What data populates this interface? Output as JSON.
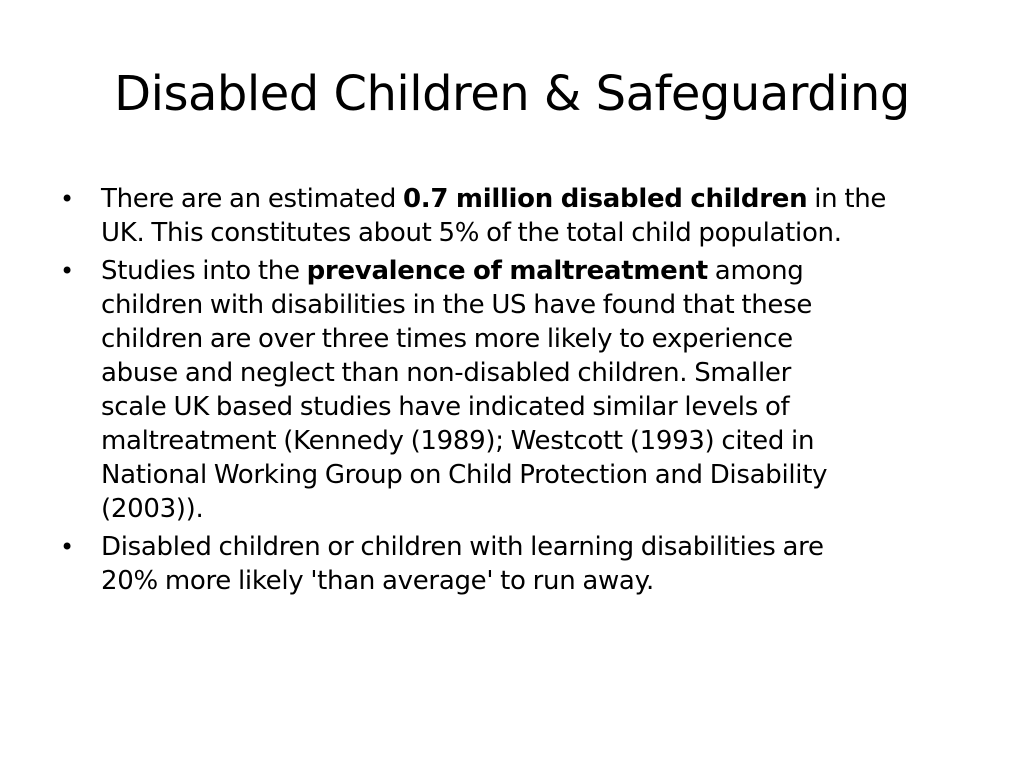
{
  "slide": {
    "title": "Disabled Children & Safeguarding",
    "bullet_glyph": "•",
    "bullets": [
      {
        "lines": [
          {
            "pre": "There are an estimated ",
            "bold": "0.7 million disabled children",
            "post": " in the"
          },
          {
            "text": "UK. This constitutes about 5% of the total child population."
          }
        ]
      },
      {
        "lines": [
          {
            "pre": "Studies into the ",
            "bold": "prevalence of maltreatment",
            "post": " among"
          },
          {
            "text": "children with disabilities in the US have found that these"
          },
          {
            "text": "children are over three times more likely to experience"
          },
          {
            "text": "abuse and neglect than non-disabled children. Smaller"
          },
          {
            "text": "scale UK based studies have indicated similar levels of"
          },
          {
            "text": "maltreatment (Kennedy (1989); Westcott (1993) cited in"
          },
          {
            "text": "National Working Group on Child Protection and Disability"
          },
          {
            "text": "(2003))."
          }
        ]
      },
      {
        "lines": [
          {
            "text": "Disabled children or children with learning disabilities are"
          },
          {
            "text": "20% more likely 'than average' to run away."
          }
        ]
      }
    ]
  }
}
